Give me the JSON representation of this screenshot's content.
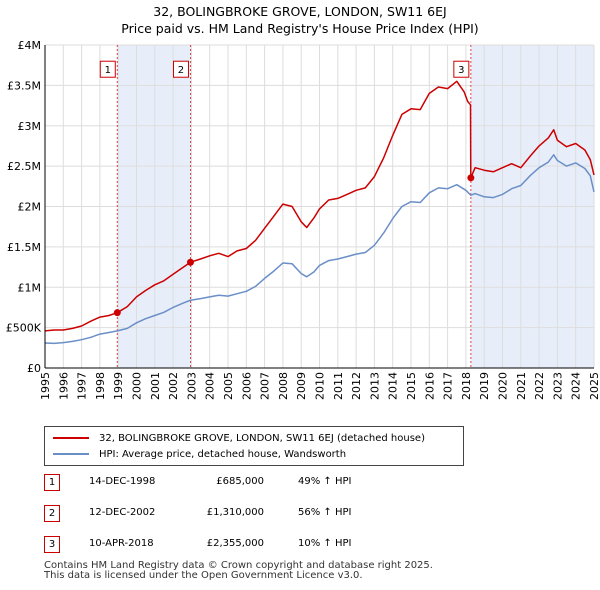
{
  "chart_data": {
    "type": "line",
    "title": "32, BOLINGBROKE GROVE, LONDON, SW11 6EJ",
    "subtitle": "Price paid vs. HM Land Registry's House Price Index (HPI)",
    "x_range": [
      1995,
      2025
    ],
    "ylim": [
      0,
      4000000
    ],
    "y_ticks": [
      {
        "value": 0,
        "label": "£0"
      },
      {
        "value": 500000,
        "label": "£500K"
      },
      {
        "value": 1000000,
        "label": "£1M"
      },
      {
        "value": 1500000,
        "label": "£1.5M"
      },
      {
        "value": 2000000,
        "label": "£2M"
      },
      {
        "value": 2500000,
        "label": "£2.5M"
      },
      {
        "value": 3000000,
        "label": "£3M"
      },
      {
        "value": 3500000,
        "label": "£3.5M"
      },
      {
        "value": 4000000,
        "label": "£4M"
      }
    ],
    "x_ticks": [
      "1995",
      "1996",
      "1997",
      "1998",
      "1999",
      "2000",
      "2001",
      "2002",
      "2003",
      "2004",
      "2005",
      "2006",
      "2007",
      "2008",
      "2009",
      "2010",
      "2011",
      "2012",
      "2013",
      "2014",
      "2015",
      "2016",
      "2017",
      "2018",
      "2019",
      "2020",
      "2021",
      "2022",
      "2023",
      "2024",
      "2025"
    ],
    "grid": true,
    "shaded_periods": [
      [
        1998.95,
        2002.95
      ],
      [
        2018.27,
        2025
      ]
    ],
    "series": [
      {
        "name": "32, BOLINGBROKE GROVE, LONDON, SW11 6EJ (detached house)",
        "color": "#cc0000",
        "points": [
          [
            1995.0,
            460000
          ],
          [
            1995.5,
            470000
          ],
          [
            1996.0,
            470000
          ],
          [
            1996.5,
            490000
          ],
          [
            1997.0,
            520000
          ],
          [
            1997.5,
            580000
          ],
          [
            1998.0,
            630000
          ],
          [
            1998.5,
            650000
          ],
          [
            1998.95,
            685000
          ],
          [
            1999.5,
            760000
          ],
          [
            2000.0,
            880000
          ],
          [
            2000.5,
            960000
          ],
          [
            2001.0,
            1030000
          ],
          [
            2001.5,
            1080000
          ],
          [
            2002.0,
            1160000
          ],
          [
            2002.5,
            1240000
          ],
          [
            2002.95,
            1310000
          ],
          [
            2003.5,
            1350000
          ],
          [
            2004.0,
            1390000
          ],
          [
            2004.5,
            1420000
          ],
          [
            2005.0,
            1380000
          ],
          [
            2005.5,
            1450000
          ],
          [
            2006.0,
            1480000
          ],
          [
            2006.5,
            1580000
          ],
          [
            2007.0,
            1730000
          ],
          [
            2007.5,
            1880000
          ],
          [
            2008.0,
            2030000
          ],
          [
            2008.5,
            2000000
          ],
          [
            2009.0,
            1810000
          ],
          [
            2009.3,
            1740000
          ],
          [
            2009.7,
            1860000
          ],
          [
            2010.0,
            1970000
          ],
          [
            2010.5,
            2080000
          ],
          [
            2011.0,
            2100000
          ],
          [
            2011.5,
            2150000
          ],
          [
            2012.0,
            2200000
          ],
          [
            2012.5,
            2230000
          ],
          [
            2013.0,
            2370000
          ],
          [
            2013.5,
            2600000
          ],
          [
            2014.0,
            2880000
          ],
          [
            2014.5,
            3140000
          ],
          [
            2015.0,
            3210000
          ],
          [
            2015.5,
            3200000
          ],
          [
            2016.0,
            3400000
          ],
          [
            2016.5,
            3480000
          ],
          [
            2017.0,
            3460000
          ],
          [
            2017.5,
            3550000
          ],
          [
            2017.9,
            3420000
          ],
          [
            2018.1,
            3300000
          ],
          [
            2018.25,
            3260000
          ],
          [
            2018.27,
            2355000
          ],
          [
            2018.5,
            2480000
          ],
          [
            2019.0,
            2450000
          ],
          [
            2019.5,
            2430000
          ],
          [
            2020.0,
            2480000
          ],
          [
            2020.5,
            2530000
          ],
          [
            2021.0,
            2480000
          ],
          [
            2021.5,
            2620000
          ],
          [
            2022.0,
            2750000
          ],
          [
            2022.5,
            2850000
          ],
          [
            2022.8,
            2950000
          ],
          [
            2023.0,
            2820000
          ],
          [
            2023.5,
            2740000
          ],
          [
            2024.0,
            2780000
          ],
          [
            2024.5,
            2700000
          ],
          [
            2024.8,
            2580000
          ],
          [
            2025.0,
            2390000
          ]
        ]
      },
      {
        "name": "HPI: Average price, detached house, Wandsworth",
        "color": "#6a8fc7",
        "points": [
          [
            1995.0,
            310000
          ],
          [
            1995.5,
            305000
          ],
          [
            1996.0,
            315000
          ],
          [
            1996.5,
            330000
          ],
          [
            1997.0,
            350000
          ],
          [
            1997.5,
            380000
          ],
          [
            1998.0,
            420000
          ],
          [
            1998.5,
            440000
          ],
          [
            1998.95,
            460000
          ],
          [
            1999.5,
            490000
          ],
          [
            2000.0,
            560000
          ],
          [
            2000.5,
            610000
          ],
          [
            2001.0,
            650000
          ],
          [
            2001.5,
            690000
          ],
          [
            2002.0,
            750000
          ],
          [
            2002.5,
            800000
          ],
          [
            2002.95,
            840000
          ],
          [
            2003.5,
            860000
          ],
          [
            2004.0,
            880000
          ],
          [
            2004.5,
            900000
          ],
          [
            2005.0,
            890000
          ],
          [
            2005.5,
            920000
          ],
          [
            2006.0,
            950000
          ],
          [
            2006.5,
            1010000
          ],
          [
            2007.0,
            1110000
          ],
          [
            2007.5,
            1200000
          ],
          [
            2008.0,
            1300000
          ],
          [
            2008.5,
            1290000
          ],
          [
            2009.0,
            1170000
          ],
          [
            2009.3,
            1130000
          ],
          [
            2009.7,
            1190000
          ],
          [
            2010.0,
            1270000
          ],
          [
            2010.5,
            1330000
          ],
          [
            2011.0,
            1350000
          ],
          [
            2011.5,
            1380000
          ],
          [
            2012.0,
            1410000
          ],
          [
            2012.5,
            1430000
          ],
          [
            2013.0,
            1520000
          ],
          [
            2013.5,
            1670000
          ],
          [
            2014.0,
            1850000
          ],
          [
            2014.5,
            2000000
          ],
          [
            2015.0,
            2060000
          ],
          [
            2015.5,
            2050000
          ],
          [
            2016.0,
            2170000
          ],
          [
            2016.5,
            2230000
          ],
          [
            2017.0,
            2220000
          ],
          [
            2017.5,
            2270000
          ],
          [
            2018.0,
            2200000
          ],
          [
            2018.27,
            2140000
          ],
          [
            2018.5,
            2160000
          ],
          [
            2019.0,
            2120000
          ],
          [
            2019.5,
            2110000
          ],
          [
            2020.0,
            2150000
          ],
          [
            2020.5,
            2220000
          ],
          [
            2021.0,
            2260000
          ],
          [
            2021.5,
            2380000
          ],
          [
            2022.0,
            2480000
          ],
          [
            2022.5,
            2550000
          ],
          [
            2022.8,
            2640000
          ],
          [
            2023.0,
            2570000
          ],
          [
            2023.5,
            2500000
          ],
          [
            2024.0,
            2540000
          ],
          [
            2024.5,
            2470000
          ],
          [
            2024.8,
            2380000
          ],
          [
            2025.0,
            2180000
          ]
        ]
      }
    ],
    "sales": [
      {
        "marker": "1",
        "x": 1998.95,
        "price": 685000,
        "label_y": 3700000
      },
      {
        "marker": "2",
        "x": 2002.95,
        "price": 1310000,
        "label_y": 3700000
      },
      {
        "marker": "3",
        "x": 2018.27,
        "price": 2355000,
        "label_y": 3700000
      }
    ]
  },
  "legend": {
    "red_label": "32, BOLINGBROKE GROVE, LONDON, SW11 6EJ (detached house)",
    "blue_label": "HPI: Average price, detached house, Wandsworth"
  },
  "transactions": [
    {
      "id": "1",
      "date": "14-DEC-1998",
      "price": "£685,000",
      "hpi": "49% ↑ HPI"
    },
    {
      "id": "2",
      "date": "12-DEC-2002",
      "price": "£1,310,000",
      "hpi": "56% ↑ HPI"
    },
    {
      "id": "3",
      "date": "10-APR-2018",
      "price": "£2,355,000",
      "hpi": "10% ↑ HPI"
    }
  ],
  "footer": {
    "line1": "Contains HM Land Registry data © Crown copyright and database right 2025.",
    "line2": "This data is licensed under the Open Government Licence v3.0."
  }
}
